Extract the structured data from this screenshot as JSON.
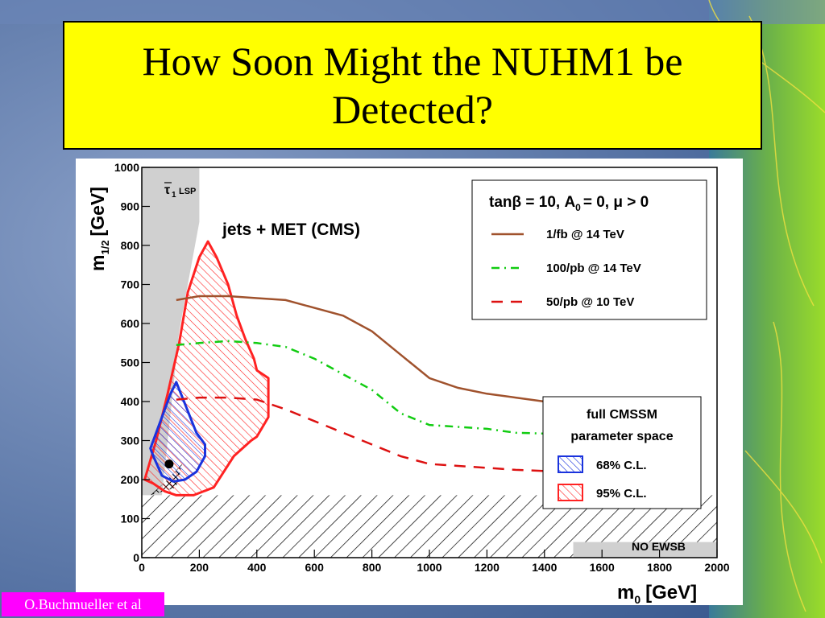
{
  "slide": {
    "title_line1": "How Soon Might the NUHM1 be",
    "title_line2": "Detected?",
    "credit": "O.Buchmueller et al",
    "colors": {
      "title_bg": "#ffff00",
      "credit_bg": "#ff00ff"
    }
  },
  "chart_data": {
    "type": "line",
    "xlabel": "m",
    "xlabel_sub": "0",
    "xlabel_unit": "[GeV]",
    "ylabel": "m",
    "ylabel_sub": "1/2",
    "ylabel_unit": "[GeV]",
    "xlim": [
      0,
      2000
    ],
    "ylim": [
      0,
      1000
    ],
    "x_ticks": [
      0,
      200,
      400,
      600,
      800,
      1000,
      1200,
      1400,
      1600,
      1800,
      2000
    ],
    "y_ticks": [
      0,
      100,
      200,
      300,
      400,
      500,
      600,
      700,
      800,
      900,
      1000
    ],
    "annotations": {
      "lsp_symbol": "τ",
      "lsp_sub": "1",
      "lsp_text": "LSP",
      "jets": "jets + MET (CMS)",
      "no_ewsb": "NO EWSB"
    },
    "legend_top": {
      "header": "tanβ = 10, A",
      "header_sub": "0",
      "header_tail": "= 0, μ > 0",
      "placement": "top-right"
    },
    "series": [
      {
        "name": "1/fb @ 14 TeV",
        "color": "#a0522d",
        "dash": "solid",
        "x": [
          120,
          200,
          300,
          400,
          500,
          600,
          700,
          800,
          900,
          1000,
          1100,
          1200,
          1300,
          1400,
          1500
        ],
        "y": [
          660,
          670,
          670,
          665,
          660,
          640,
          620,
          580,
          520,
          460,
          435,
          420,
          410,
          400,
          395
        ]
      },
      {
        "name": "100/pb @ 14 TeV",
        "color": "#11cc11",
        "dash": "dashdot",
        "x": [
          120,
          200,
          300,
          400,
          500,
          600,
          700,
          800,
          900,
          1000,
          1100,
          1200,
          1300,
          1400,
          1500
        ],
        "y": [
          545,
          550,
          555,
          550,
          540,
          510,
          470,
          430,
          370,
          340,
          335,
          330,
          320,
          318,
          315
        ]
      },
      {
        "name": "50/pb @ 10 TeV",
        "color": "#dd1111",
        "dash": "dashed",
        "x": [
          120,
          200,
          300,
          400,
          500,
          600,
          700,
          800,
          900,
          1000,
          1100,
          1200,
          1300,
          1400,
          1500
        ],
        "y": [
          405,
          410,
          410,
          405,
          380,
          350,
          320,
          290,
          260,
          240,
          235,
          230,
          225,
          222,
          220
        ]
      }
    ],
    "legend_regions": {
      "header1": "full CMSSM",
      "header2": "parameter space",
      "placement": "bottom-right",
      "items": [
        {
          "name": "68% C.L.",
          "color": "#1a33dd"
        },
        {
          "name": "95% C.L.",
          "color": "#ff2222"
        }
      ]
    },
    "regions": {
      "cl68": {
        "x": [
          30,
          60,
          100,
          120,
          190,
          220,
          220,
          190,
          150,
          110,
          70,
          40,
          30,
          30
        ],
        "y": [
          280,
          340,
          420,
          450,
          320,
          290,
          260,
          220,
          200,
          195,
          210,
          260,
          280,
          280
        ]
      },
      "cl95": {
        "x": [
          10,
          50,
          90,
          130,
          160,
          200,
          230,
          260,
          300,
          330,
          360,
          390,
          400,
          440,
          440,
          400,
          380,
          320,
          250,
          180,
          120,
          80,
          40,
          10
        ],
        "y": [
          200,
          300,
          420,
          550,
          680,
          770,
          810,
          770,
          700,
          620,
          560,
          510,
          480,
          460,
          360,
          310,
          300,
          260,
          180,
          160,
          160,
          170,
          190,
          200
        ]
      },
      "best_fit": {
        "x": 95,
        "y": 240
      },
      "lsp_excluded": {
        "x": [
          0,
          0,
          200,
          200,
          130,
          70
        ],
        "y": [
          160,
          1000,
          1000,
          860,
          580,
          160
        ]
      },
      "no_ewsb_band_ymax": 160,
      "chargino_patch": {
        "x": [
          0,
          30,
          120,
          140,
          90,
          30
        ],
        "y": [
          160,
          160,
          180,
          240,
          200,
          160
        ]
      }
    }
  }
}
